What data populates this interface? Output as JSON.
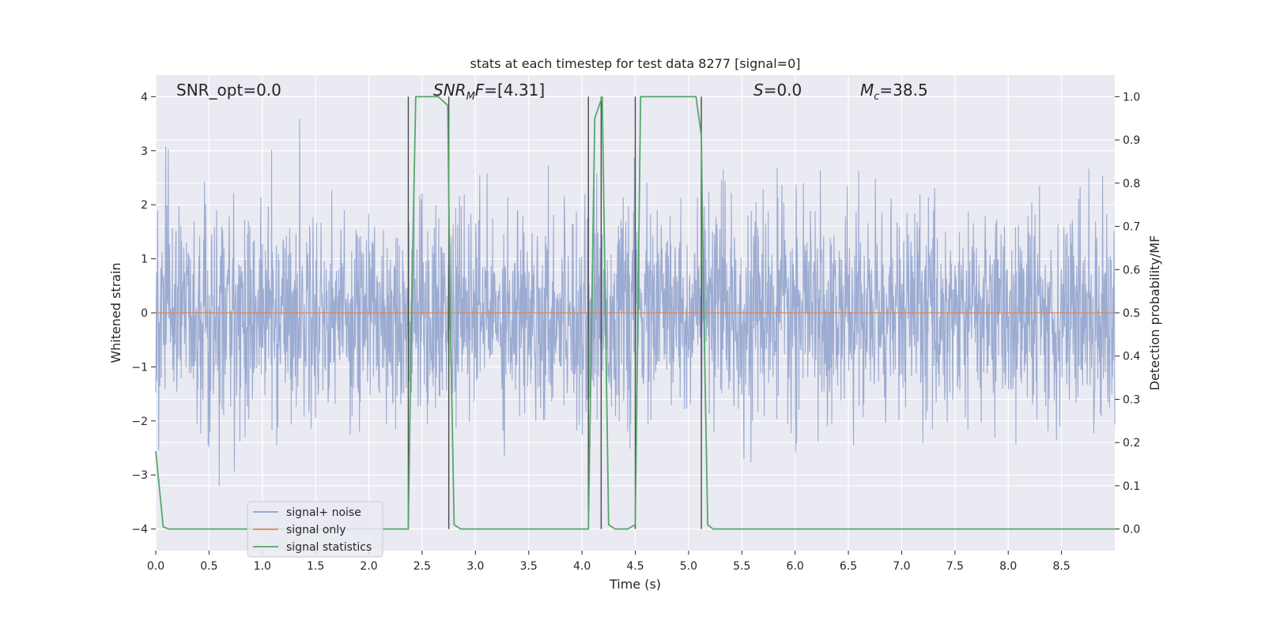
{
  "chart_data": {
    "type": "line",
    "title": "stats at each timestep for test data 8277 [signal=0]",
    "xlabel": "Time (s)",
    "ylabel": "Whitened strain",
    "y2label": "Detection probability/MF",
    "xlim": [
      0,
      9.0
    ],
    "ylim": [
      -4.4,
      4.4
    ],
    "y2lim": [
      -0.05,
      1.05
    ],
    "grid": true,
    "legend_position": "lower-left",
    "x_ticks": [
      "0.0",
      "0.5",
      "1.0",
      "1.5",
      "2.0",
      "2.5",
      "3.0",
      "3.5",
      "4.0",
      "4.5",
      "5.0",
      "5.5",
      "6.0",
      "6.5",
      "7.0",
      "7.5",
      "8.0",
      "8.5"
    ],
    "y_ticks": [
      "4",
      "3",
      "2",
      "1",
      "0",
      "−1",
      "−2",
      "−3",
      "−4"
    ],
    "y_tick_values": [
      4,
      3,
      2,
      1,
      0,
      -1,
      -2,
      -3,
      -4
    ],
    "y2_ticks": [
      "1.0",
      "0.9",
      "0.8",
      "0.7",
      "0.6",
      "0.5",
      "0.4",
      "0.3",
      "0.2",
      "0.1",
      "0.0"
    ],
    "y2_tick_values": [
      1.0,
      0.9,
      0.8,
      0.7,
      0.6,
      0.5,
      0.4,
      0.3,
      0.2,
      0.1,
      0.0
    ],
    "annotations": {
      "snr_opt": "SNR_opt=0.0",
      "snr_mf_base": "SNR",
      "snr_mf_sub": "M",
      "snr_mf_rest": "F=[4.31]",
      "s_stat": "=0.0",
      "s_symbol": "S",
      "mc_base": "M",
      "mc_sub": "c",
      "mc_rest": "=38.5"
    },
    "series": [
      {
        "name": "signal+ noise",
        "color": "#8da0cb",
        "description_envelope": "noise fluctuating mostly between -2.5 and 2.5 with spikes to ~±4"
      },
      {
        "name": "signal only",
        "color": "#dd8452",
        "values": "zero everywhere"
      },
      {
        "name": "signal statistics",
        "color": "#55a868",
        "axis": "right",
        "x": [
          0.0,
          0.07,
          0.12,
          2.37,
          2.4,
          2.44,
          2.65,
          2.74,
          2.76,
          2.8,
          2.86,
          4.06,
          4.12,
          4.19,
          4.25,
          4.31,
          4.43,
          4.5,
          4.55,
          4.6,
          5.07,
          5.12,
          5.14,
          5.18,
          5.23,
          9.0
        ],
        "values": [
          0.18,
          0.005,
          0.0,
          0.0,
          0.5,
          1.0,
          1.0,
          0.98,
          0.55,
          0.01,
          0.0,
          0.0,
          0.95,
          1.0,
          0.01,
          0.0,
          0.0,
          0.01,
          1.0,
          1.0,
          1.0,
          0.91,
          0.55,
          0.01,
          0.0,
          0.0
        ]
      }
    ],
    "vertical_lines_x": [
      2.37,
      2.75,
      4.06,
      4.18,
      4.5,
      5.12
    ]
  },
  "colors": {
    "plot_bg": "#eaeaf2",
    "grid": "#ffffff",
    "noise": "#8da0cb",
    "signal": "#dd8452",
    "stats": "#55a868",
    "vline": "#4a4a4a"
  }
}
